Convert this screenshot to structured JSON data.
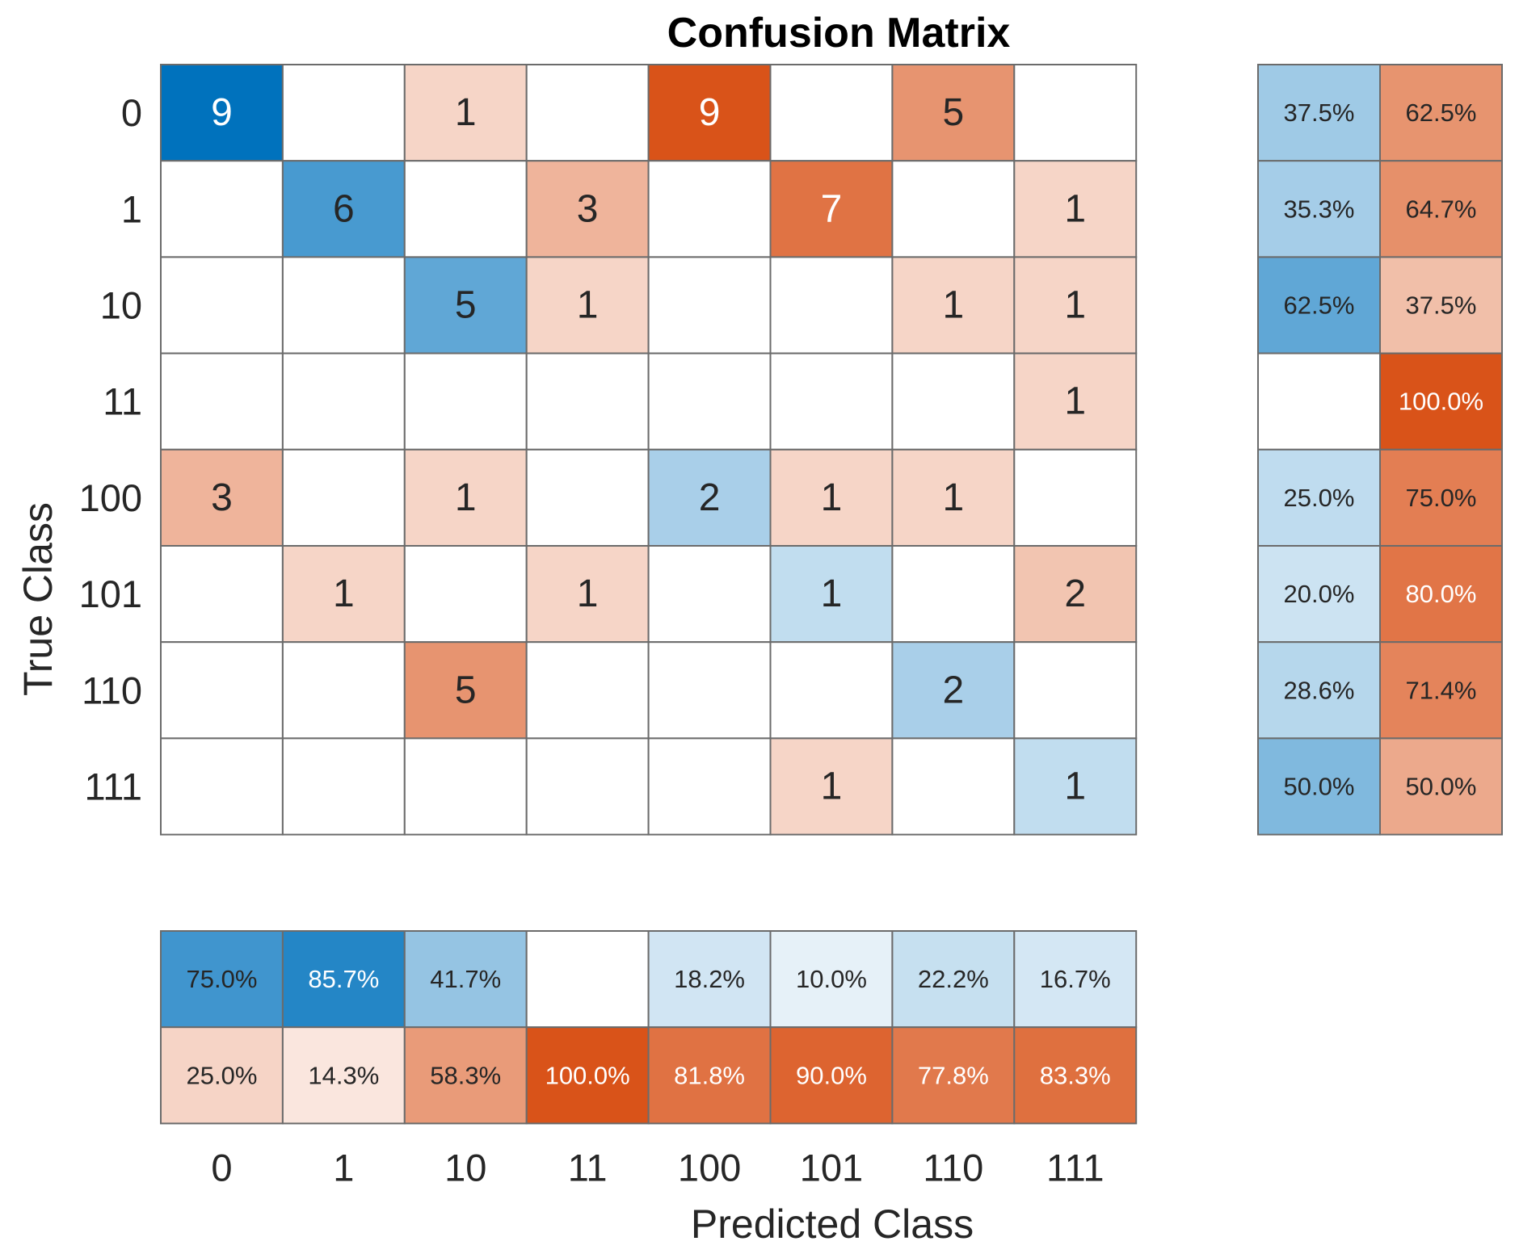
{
  "chart_data": {
    "type": "heatmap",
    "title": "Confusion Matrix",
    "xlabel": "Predicted Class",
    "ylabel": "True Class",
    "classes": [
      "0",
      "1",
      "10",
      "11",
      "100",
      "101",
      "110",
      "111"
    ],
    "matrix": [
      [
        9,
        0,
        1,
        0,
        9,
        0,
        5,
        0
      ],
      [
        0,
        6,
        0,
        3,
        0,
        7,
        0,
        1
      ],
      [
        0,
        0,
        5,
        1,
        0,
        0,
        1,
        1
      ],
      [
        0,
        0,
        0,
        0,
        0,
        0,
        0,
        1
      ],
      [
        3,
        0,
        1,
        0,
        2,
        1,
        1,
        0
      ],
      [
        0,
        1,
        0,
        1,
        0,
        1,
        0,
        2
      ],
      [
        0,
        0,
        5,
        0,
        0,
        0,
        2,
        0
      ],
      [
        0,
        0,
        0,
        0,
        0,
        1,
        0,
        1
      ]
    ],
    "row_summary": {
      "correct": [
        37.5,
        35.3,
        62.5,
        0,
        25.0,
        20.0,
        28.6,
        50.0
      ],
      "incorrect": [
        62.5,
        64.7,
        37.5,
        100.0,
        75.0,
        80.0,
        71.4,
        50.0
      ],
      "correct_labels": [
        "37.5%",
        "35.3%",
        "62.5%",
        "",
        "25.0%",
        "20.0%",
        "28.6%",
        "50.0%"
      ],
      "incorrect_labels": [
        "62.5%",
        "64.7%",
        "37.5%",
        "100.0%",
        "75.0%",
        "80.0%",
        "71.4%",
        "50.0%"
      ]
    },
    "column_summary": {
      "correct": [
        75.0,
        85.7,
        41.7,
        0,
        18.2,
        10.0,
        22.2,
        16.7
      ],
      "incorrect": [
        25.0,
        14.3,
        58.3,
        100.0,
        81.8,
        90.0,
        77.8,
        83.3
      ],
      "correct_labels": [
        "75.0%",
        "85.7%",
        "41.7%",
        "",
        "18.2%",
        "10.0%",
        "22.2%",
        "16.7%"
      ],
      "incorrect_labels": [
        "25.0%",
        "14.3%",
        "58.3%",
        "100.0%",
        "81.8%",
        "90.0%",
        "77.8%",
        "83.3%"
      ]
    },
    "colors": {
      "correct": "#0072bd",
      "incorrect": "#d95319",
      "background": "#ffffff",
      "grid": "#6b6b6b"
    }
  }
}
